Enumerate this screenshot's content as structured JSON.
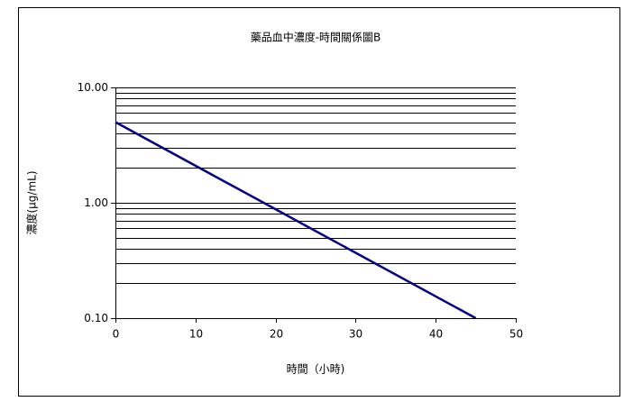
{
  "chart_data": {
    "type": "line",
    "title": "藥品血中濃度-時間關係圖B",
    "x_label": "時間（小時)",
    "y_label": "濃度(μg/mL)",
    "x": [
      0,
      45
    ],
    "series": [
      {
        "name": "濃度",
        "color": "#000080",
        "values": [
          5,
          0.1
        ]
      }
    ],
    "xlim": [
      0,
      50
    ],
    "xticks": [
      0,
      10,
      20,
      30,
      40,
      50
    ],
    "ylim": [
      0.1,
      10
    ],
    "ylog": true,
    "yticks": [
      {
        "value": 0.1,
        "label": "0.10"
      },
      {
        "value": 1,
        "label": "1.00"
      },
      {
        "value": 10,
        "label": "10.00"
      }
    ],
    "yminorticks": [
      0.2,
      0.3,
      0.4,
      0.5,
      0.6,
      0.7,
      0.8,
      0.9,
      2,
      3,
      4,
      5,
      6,
      7,
      8,
      9
    ],
    "grid": true
  }
}
